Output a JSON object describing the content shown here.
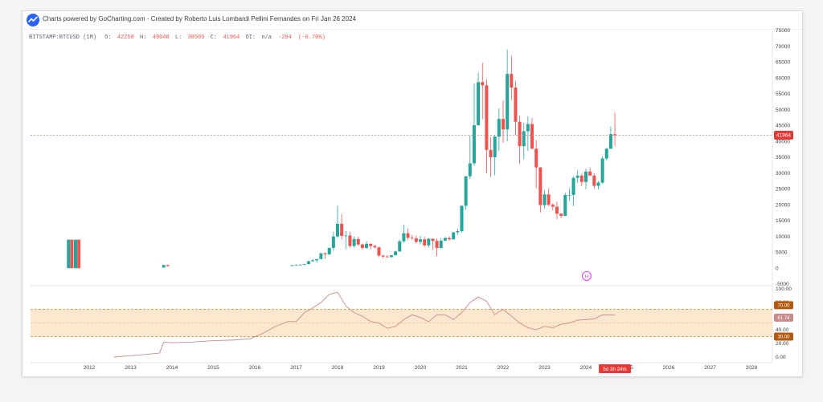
{
  "header": {
    "text": "Charts powered by GoCharting.com - Created by Roberto Luis Lombardi Pellini Fernandes on Fri Jan 26 2024"
  },
  "info": {
    "symbol": "BITSTAMP:BTCUSD (1M)",
    "o_label": "O:",
    "o_value": "42258",
    "h_label": "H:",
    "h_value": "49048",
    "l_label": "L:",
    "l_value": "38505",
    "c_label": "C:",
    "c_value": "41964",
    "oi_label": "OI:",
    "oi_value": "n/a",
    "change": "-294",
    "change_pct": "(-0.70%)"
  },
  "price_badge": "41964",
  "countdown": "5d 3h 24m",
  "marker": "H",
  "rsi_badges": {
    "upper": "70.00",
    "current": "61.74",
    "lower": "30.00"
  },
  "colors": {
    "up": "#26a69a",
    "down": "#ef5350",
    "rsi_line": "#c98b8b",
    "rsi_band": "#fde8cf",
    "band_border": "#c8882c",
    "badge_brown": "#b4580e",
    "badge_red": "#e53935",
    "marker": "#e040fb"
  },
  "chart_data": [
    {
      "type": "candlestick",
      "x_tick_labels": [
        "2012",
        "2013",
        "2014",
        "2015",
        "2016",
        "2017",
        "2018",
        "2019",
        "2020",
        "2021",
        "2022",
        "2023",
        "2024",
        "2025",
        "2026",
        "2027",
        "2028"
      ],
      "y_tick_labels": [
        "75000",
        "70000",
        "65000",
        "60000",
        "55000",
        "50000",
        "45000",
        "40000",
        "35000",
        "30000",
        "25000",
        "20000",
        "15000",
        "10000",
        "5000",
        "0",
        "-5000"
      ],
      "ylim": [
        -5000,
        75000
      ],
      "last_price": 41964,
      "candles": [
        {
          "t": 2011.5,
          "o": 0,
          "h": 9000,
          "l": 0,
          "c": 9000
        },
        {
          "t": 2011.58,
          "o": 9000,
          "h": 9000,
          "l": 0,
          "c": 0
        },
        {
          "t": 2011.67,
          "o": 0,
          "h": 9000,
          "l": 0,
          "c": 9000
        },
        {
          "t": 2011.75,
          "o": 9000,
          "h": 9000,
          "l": 0,
          "c": 0
        },
        {
          "t": 2013.8,
          "o": 200,
          "h": 1100,
          "l": 150,
          "c": 1000
        },
        {
          "t": 2013.9,
          "o": 1000,
          "h": 1150,
          "l": 500,
          "c": 700
        },
        {
          "t": 2016.9,
          "o": 700,
          "h": 1000,
          "l": 650,
          "c": 950
        },
        {
          "t": 2017.0,
          "o": 950,
          "h": 1200,
          "l": 800,
          "c": 1000
        },
        {
          "t": 2017.1,
          "o": 1000,
          "h": 1250,
          "l": 900,
          "c": 1150
        },
        {
          "t": 2017.2,
          "o": 1150,
          "h": 1350,
          "l": 900,
          "c": 1300
        },
        {
          "t": 2017.3,
          "o": 1300,
          "h": 2300,
          "l": 1250,
          "c": 2200
        },
        {
          "t": 2017.4,
          "o": 2200,
          "h": 3000,
          "l": 2100,
          "c": 2500
        },
        {
          "t": 2017.5,
          "o": 2500,
          "h": 2900,
          "l": 1800,
          "c": 2900
        },
        {
          "t": 2017.6,
          "o": 2900,
          "h": 4800,
          "l": 2700,
          "c": 4700
        },
        {
          "t": 2017.7,
          "o": 4700,
          "h": 5000,
          "l": 3000,
          "c": 4400
        },
        {
          "t": 2017.8,
          "o": 4400,
          "h": 6500,
          "l": 4100,
          "c": 6400
        },
        {
          "t": 2017.9,
          "o": 6400,
          "h": 11500,
          "l": 5500,
          "c": 10000
        },
        {
          "t": 2018.0,
          "o": 10000,
          "h": 19700,
          "l": 9500,
          "c": 14000
        },
        {
          "t": 2018.1,
          "o": 14000,
          "h": 17200,
          "l": 9000,
          "c": 10200
        },
        {
          "t": 2018.2,
          "o": 10200,
          "h": 11800,
          "l": 6000,
          "c": 10300
        },
        {
          "t": 2018.3,
          "o": 10300,
          "h": 11500,
          "l": 6500,
          "c": 7000
        },
        {
          "t": 2018.4,
          "o": 7000,
          "h": 10000,
          "l": 6500,
          "c": 9200
        },
        {
          "t": 2018.5,
          "o": 9200,
          "h": 9900,
          "l": 7000,
          "c": 7500
        },
        {
          "t": 2018.6,
          "o": 7500,
          "h": 7800,
          "l": 5800,
          "c": 6400
        },
        {
          "t": 2018.7,
          "o": 6400,
          "h": 8500,
          "l": 6100,
          "c": 7700
        },
        {
          "t": 2018.8,
          "o": 7700,
          "h": 7800,
          "l": 6000,
          "c": 7000
        },
        {
          "t": 2018.9,
          "o": 7000,
          "h": 7400,
          "l": 6200,
          "c": 6600
        },
        {
          "t": 2019.0,
          "o": 6600,
          "h": 6700,
          "l": 3500,
          "c": 4000
        },
        {
          "t": 2019.1,
          "o": 4000,
          "h": 4200,
          "l": 3200,
          "c": 3700
        },
        {
          "t": 2019.2,
          "o": 3700,
          "h": 4200,
          "l": 3300,
          "c": 3500
        },
        {
          "t": 2019.3,
          "o": 3500,
          "h": 4100,
          "l": 3400,
          "c": 4100
        },
        {
          "t": 2019.4,
          "o": 4100,
          "h": 5500,
          "l": 4000,
          "c": 5300
        },
        {
          "t": 2019.5,
          "o": 5300,
          "h": 9000,
          "l": 5200,
          "c": 8500
        },
        {
          "t": 2019.6,
          "o": 8500,
          "h": 13800,
          "l": 8000,
          "c": 11000
        },
        {
          "t": 2019.7,
          "o": 11000,
          "h": 12500,
          "l": 9000,
          "c": 9600
        },
        {
          "t": 2019.8,
          "o": 9600,
          "h": 10500,
          "l": 9000,
          "c": 9400
        },
        {
          "t": 2019.9,
          "o": 9400,
          "h": 10300,
          "l": 7800,
          "c": 8300
        },
        {
          "t": 2020.0,
          "o": 8300,
          "h": 10300,
          "l": 7500,
          "c": 9100
        },
        {
          "t": 2020.1,
          "o": 9100,
          "h": 9900,
          "l": 6800,
          "c": 7200
        },
        {
          "t": 2020.2,
          "o": 7200,
          "h": 9500,
          "l": 6500,
          "c": 9300
        },
        {
          "t": 2020.3,
          "o": 9300,
          "h": 9400,
          "l": 5800,
          "c": 8600
        },
        {
          "t": 2020.4,
          "o": 8600,
          "h": 9400,
          "l": 3800,
          "c": 6400
        },
        {
          "t": 2020.5,
          "o": 6400,
          "h": 9500,
          "l": 6200,
          "c": 8700
        },
        {
          "t": 2020.6,
          "o": 8700,
          "h": 10000,
          "l": 8500,
          "c": 9500
        },
        {
          "t": 2020.7,
          "o": 9500,
          "h": 10100,
          "l": 8700,
          "c": 9100
        },
        {
          "t": 2020.8,
          "o": 9100,
          "h": 11400,
          "l": 9000,
          "c": 11300
        },
        {
          "t": 2020.9,
          "o": 11300,
          "h": 12500,
          "l": 10500,
          "c": 11700
        },
        {
          "t": 2021.0,
          "o": 11700,
          "h": 19800,
          "l": 11300,
          "c": 19700
        },
        {
          "t": 2021.1,
          "o": 19700,
          "h": 29000,
          "l": 18500,
          "c": 29000
        },
        {
          "t": 2021.2,
          "o": 29000,
          "h": 41900,
          "l": 28100,
          "c": 33100
        },
        {
          "t": 2021.3,
          "o": 33100,
          "h": 58300,
          "l": 32300,
          "c": 45100
        },
        {
          "t": 2021.4,
          "o": 45100,
          "h": 61700,
          "l": 45000,
          "c": 58700
        },
        {
          "t": 2021.5,
          "o": 58700,
          "h": 64800,
          "l": 47000,
          "c": 57700
        },
        {
          "t": 2021.6,
          "o": 57700,
          "h": 59500,
          "l": 30000,
          "c": 37300
        },
        {
          "t": 2021.7,
          "o": 37300,
          "h": 41300,
          "l": 28800,
          "c": 35000
        },
        {
          "t": 2021.8,
          "o": 35000,
          "h": 42000,
          "l": 29300,
          "c": 41500
        },
        {
          "t": 2021.9,
          "o": 41500,
          "h": 50400,
          "l": 37000,
          "c": 47100
        },
        {
          "t": 2022.0,
          "o": 47100,
          "h": 52900,
          "l": 39600,
          "c": 43800
        },
        {
          "t": 2022.1,
          "o": 43800,
          "h": 69000,
          "l": 40000,
          "c": 61300
        },
        {
          "t": 2022.2,
          "o": 61300,
          "h": 67000,
          "l": 53000,
          "c": 57000
        },
        {
          "t": 2022.3,
          "o": 57000,
          "h": 59000,
          "l": 42000,
          "c": 46200
        },
        {
          "t": 2022.4,
          "o": 46200,
          "h": 48200,
          "l": 32900,
          "c": 38500
        },
        {
          "t": 2022.5,
          "o": 38500,
          "h": 45800,
          "l": 34300,
          "c": 43200
        },
        {
          "t": 2022.6,
          "o": 43200,
          "h": 48000,
          "l": 37000,
          "c": 45500
        },
        {
          "t": 2022.7,
          "o": 45500,
          "h": 47400,
          "l": 37600,
          "c": 37700
        },
        {
          "t": 2022.8,
          "o": 37700,
          "h": 40400,
          "l": 25300,
          "c": 31800
        },
        {
          "t": 2022.9,
          "o": 31800,
          "h": 31900,
          "l": 17600,
          "c": 19900
        },
        {
          "t": 2023.0,
          "o": 19900,
          "h": 24600,
          "l": 18800,
          "c": 23300
        },
        {
          "t": 2023.1,
          "o": 23300,
          "h": 25200,
          "l": 19600,
          "c": 20000
        },
        {
          "t": 2023.2,
          "o": 20000,
          "h": 20500,
          "l": 18200,
          "c": 19400
        },
        {
          "t": 2023.3,
          "o": 19400,
          "h": 21000,
          "l": 15500,
          "c": 17200
        },
        {
          "t": 2023.4,
          "o": 17200,
          "h": 17400,
          "l": 15800,
          "c": 16500
        },
        {
          "t": 2023.5,
          "o": 16500,
          "h": 23900,
          "l": 16500,
          "c": 23100
        },
        {
          "t": 2023.6,
          "o": 23100,
          "h": 25200,
          "l": 21400,
          "c": 23100
        },
        {
          "t": 2023.7,
          "o": 23100,
          "h": 29000,
          "l": 19600,
          "c": 28500
        },
        {
          "t": 2023.8,
          "o": 28500,
          "h": 31000,
          "l": 26900,
          "c": 29200
        },
        {
          "t": 2023.9,
          "o": 29200,
          "h": 29800,
          "l": 25900,
          "c": 27200
        },
        {
          "t": 2024.0,
          "o": 27200,
          "h": 31400,
          "l": 24900,
          "c": 30500
        },
        {
          "t": 2024.1,
          "o": 30500,
          "h": 31800,
          "l": 29200,
          "c": 29200
        },
        {
          "t": 2024.2,
          "o": 29200,
          "h": 30000,
          "l": 25200,
          "c": 26000
        },
        {
          "t": 2024.3,
          "o": 26000,
          "h": 27500,
          "l": 24900,
          "c": 27000
        },
        {
          "t": 2024.4,
          "o": 27000,
          "h": 35300,
          "l": 26600,
          "c": 34600
        },
        {
          "t": 2024.5,
          "o": 34600,
          "h": 38000,
          "l": 34000,
          "c": 37700
        },
        {
          "t": 2024.6,
          "o": 37700,
          "h": 44700,
          "l": 37600,
          "c": 42300
        },
        {
          "t": 2024.7,
          "o": 42258,
          "h": 49048,
          "l": 38505,
          "c": 41964
        }
      ]
    },
    {
      "type": "line",
      "name": "RSI",
      "y_tick_labels": [
        "100.00",
        "80.00",
        "60.00",
        "40.00",
        "20.00",
        "0.00"
      ],
      "ylim": [
        0,
        100
      ],
      "band": [
        30,
        70
      ],
      "midline": 50,
      "current": 61.74,
      "x": [
        2012.6,
        2013.0,
        2013.4,
        2013.7,
        2013.8,
        2014.0,
        2014.5,
        2015.0,
        2015.5,
        2015.9,
        2016.2,
        2016.5,
        2016.8,
        2017.0,
        2017.2,
        2017.4,
        2017.6,
        2017.8,
        2018.0,
        2018.2,
        2018.4,
        2018.6,
        2018.8,
        2019.0,
        2019.2,
        2019.4,
        2019.6,
        2019.8,
        2020.0,
        2020.2,
        2020.4,
        2020.6,
        2020.8,
        2021.0,
        2021.2,
        2021.4,
        2021.6,
        2021.8,
        2022.0,
        2022.2,
        2022.4,
        2022.6,
        2022.8,
        2023.0,
        2023.2,
        2023.4,
        2023.6,
        2023.8,
        2024.0,
        2024.2,
        2024.4,
        2024.7
      ],
      "values": [
        0,
        2,
        4,
        6,
        22,
        21,
        22,
        24,
        25,
        27,
        35,
        45,
        52,
        52,
        65,
        72,
        80,
        92,
        95,
        75,
        65,
        60,
        52,
        50,
        42,
        45,
        55,
        62,
        58,
        52,
        62,
        62,
        55,
        65,
        80,
        88,
        82,
        62,
        70,
        60,
        50,
        43,
        40,
        45,
        43,
        48,
        50,
        54,
        55,
        56,
        62,
        61.74
      ]
    }
  ]
}
